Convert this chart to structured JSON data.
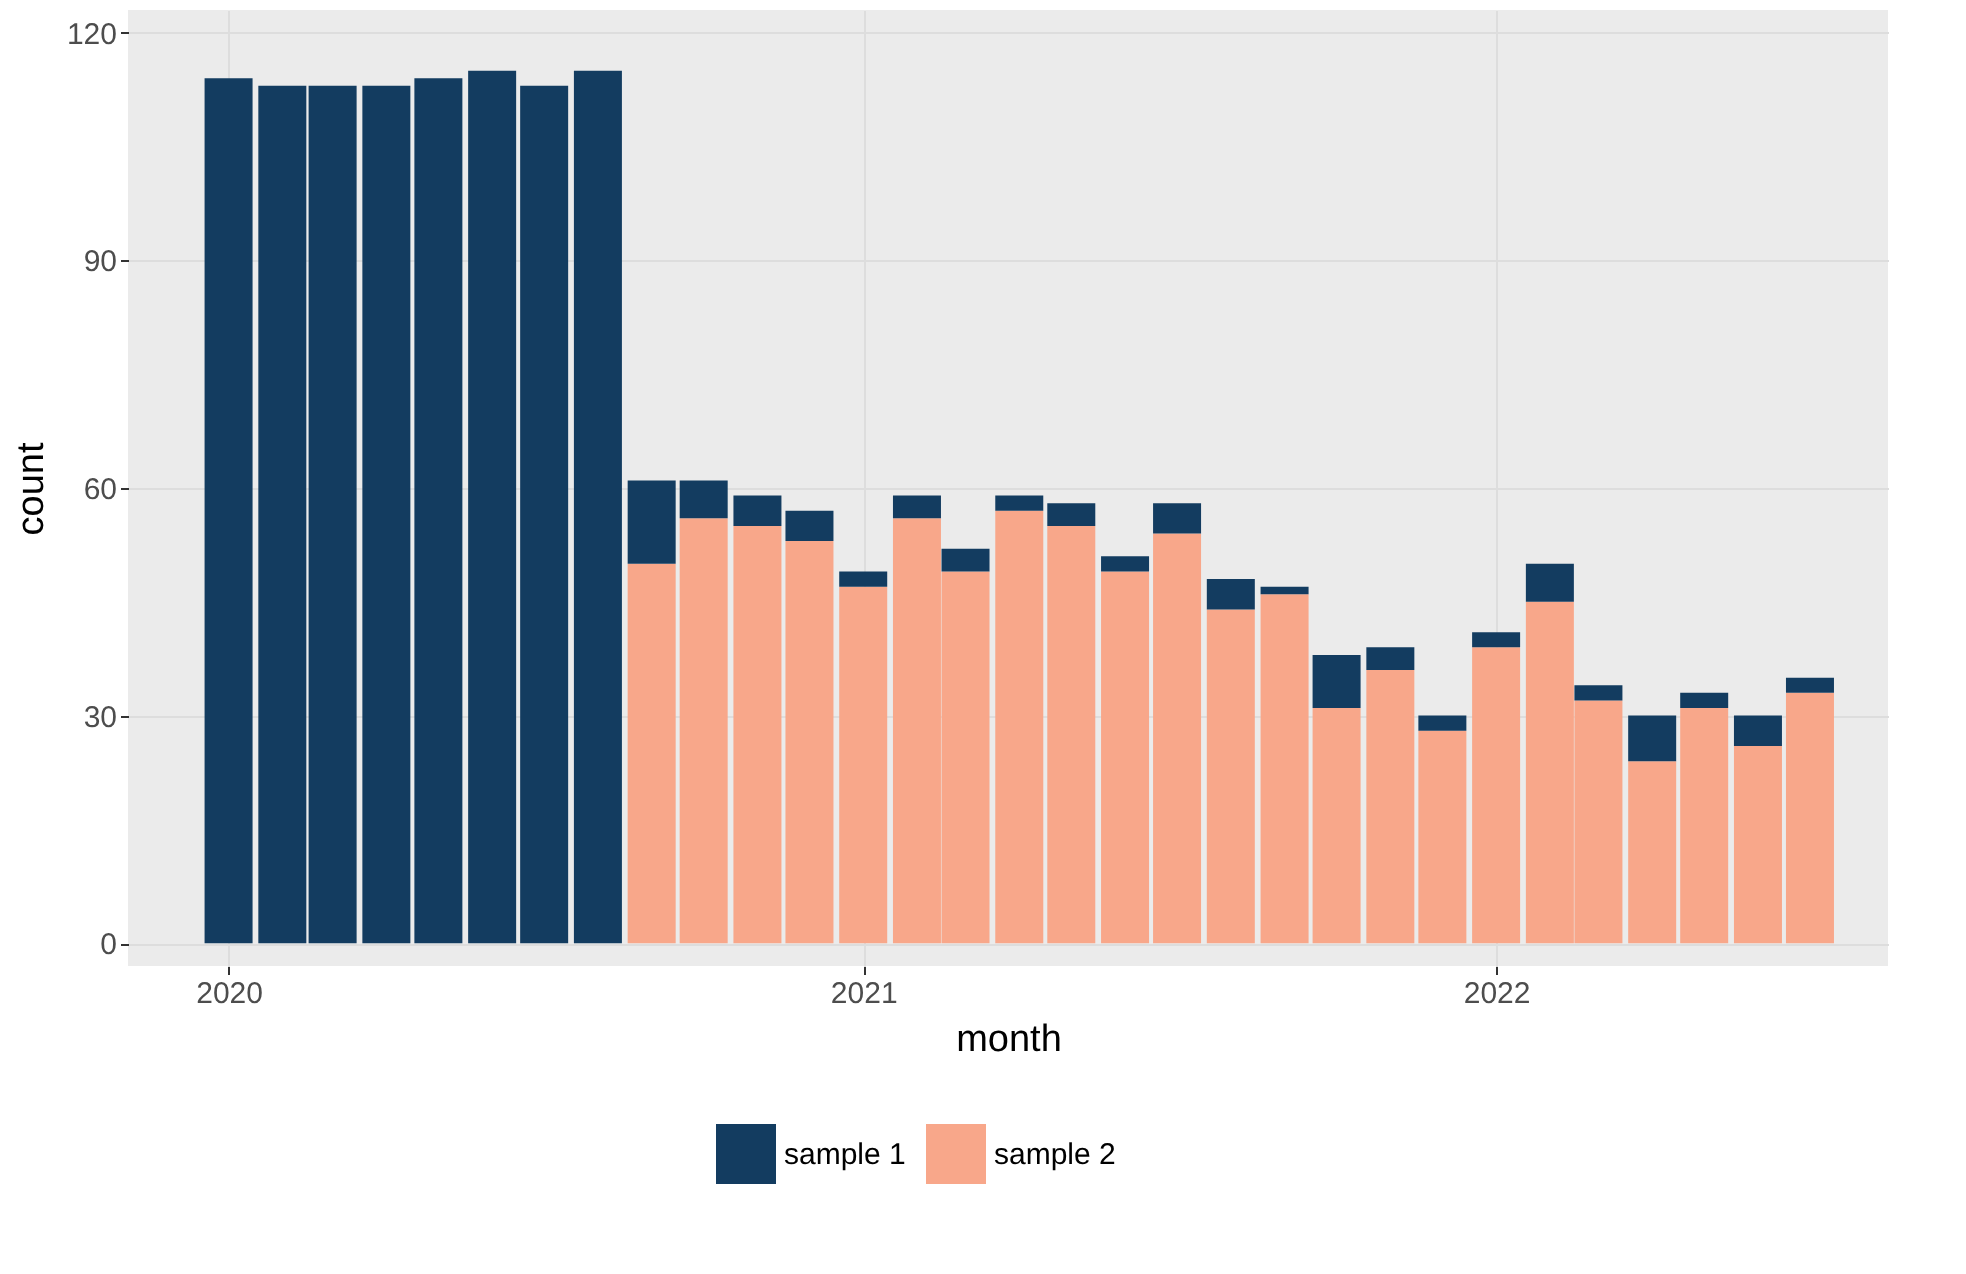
{
  "chart_data": {
    "type": "bar",
    "stacked": true,
    "xlabel": "month",
    "ylabel": "count",
    "x": [
      "2020-01",
      "2020-02",
      "2020-03",
      "2020-04",
      "2020-05",
      "2020-06",
      "2020-07",
      "2020-08",
      "2020-09",
      "2020-10",
      "2020-11",
      "2020-12",
      "2021-01",
      "2021-02",
      "2021-03",
      "2021-04",
      "2021-05",
      "2021-06",
      "2021-07",
      "2021-08",
      "2021-09",
      "2021-10",
      "2021-11",
      "2021-12",
      "2022-01",
      "2022-02",
      "2022-03",
      "2022-04",
      "2022-05",
      "2022-06",
      "2022-07"
    ],
    "series": [
      {
        "name": "sample 2",
        "color": "#f8a78a",
        "values": [
          null,
          null,
          null,
          null,
          null,
          null,
          null,
          null,
          50,
          56,
          55,
          53,
          47,
          56,
          49,
          57,
          55,
          49,
          54,
          44,
          46,
          31,
          36,
          28,
          39,
          45,
          32,
          24,
          31,
          26,
          33
        ]
      },
      {
        "name": "sample 1",
        "color": "#133c60",
        "values": [
          114,
          113,
          113,
          113,
          114,
          115,
          113,
          115,
          11,
          5,
          4,
          4,
          2,
          3,
          3,
          2,
          3,
          2,
          4,
          4,
          1,
          7,
          3,
          2,
          2,
          5,
          2,
          6,
          2,
          4,
          2
        ]
      }
    ],
    "xlim": [
      "2019-11-04",
      "2022-08-15"
    ],
    "xticks": [
      "2020",
      "2021",
      "2022"
    ],
    "ylim": [
      -3,
      123
    ],
    "yticks": [
      0,
      30,
      60,
      90,
      120
    ],
    "grid": true,
    "legend": "bottom"
  }
}
